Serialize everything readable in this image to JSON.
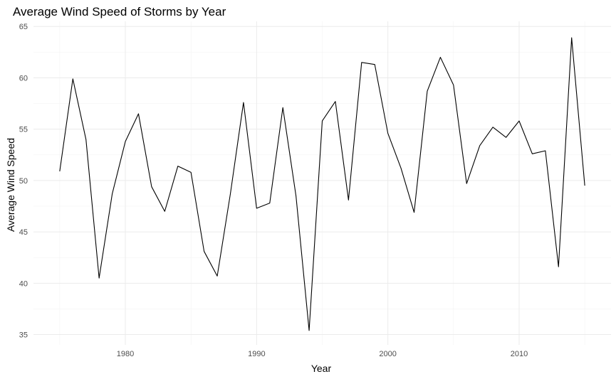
{
  "chart_data": {
    "type": "line",
    "title": "Average Wind Speed of Storms by Year",
    "xlabel": "Year",
    "ylabel": "Average Wind Speed",
    "xlim": [
      1973,
      2017
    ],
    "ylim": [
      34,
      65.5
    ],
    "x_ticks": [
      1980,
      1990,
      2000,
      2010
    ],
    "y_ticks": [
      35,
      40,
      45,
      50,
      55,
      60,
      65
    ],
    "grid": true,
    "legend": "none",
    "line_color": "#000000",
    "x": [
      1975,
      1976,
      1977,
      1978,
      1979,
      1980,
      1981,
      1982,
      1983,
      1984,
      1985,
      1986,
      1987,
      1988,
      1989,
      1990,
      1991,
      1992,
      1993,
      1994,
      1995,
      1996,
      1997,
      1998,
      1999,
      2000,
      2001,
      2002,
      2003,
      2004,
      2005,
      2006,
      2007,
      2008,
      2009,
      2010,
      2011,
      2012,
      2013,
      2014,
      2015
    ],
    "y": [
      50.9,
      59.9,
      54.0,
      40.5,
      48.7,
      53.8,
      56.5,
      49.4,
      47.0,
      51.4,
      50.8,
      43.1,
      40.7,
      48.7,
      57.6,
      47.3,
      47.8,
      57.1,
      48.5,
      35.4,
      55.8,
      57.7,
      48.1,
      61.5,
      61.3,
      54.6,
      51.2,
      46.9,
      58.7,
      62.0,
      59.3,
      49.7,
      53.4,
      55.2,
      54.2,
      55.8,
      52.6,
      52.9,
      41.6,
      63.9,
      49.5
    ]
  }
}
